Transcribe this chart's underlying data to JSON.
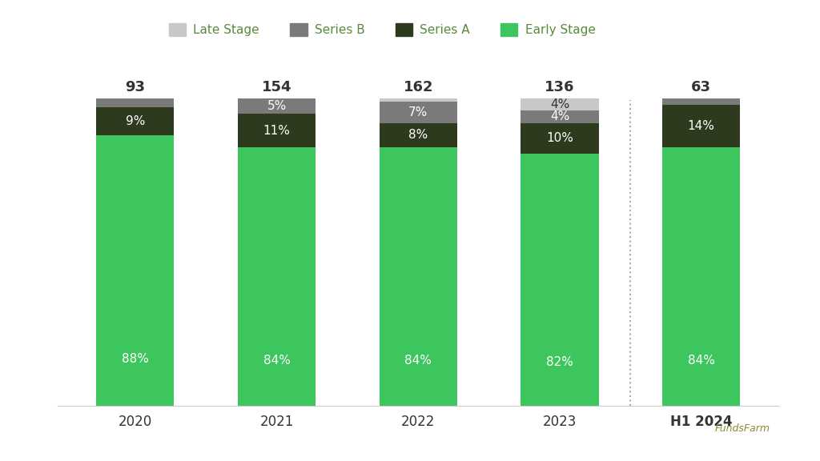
{
  "categories": [
    "2020",
    "2021",
    "2022",
    "2023",
    "H1 2024"
  ],
  "totals": [
    93,
    154,
    162,
    136,
    63
  ],
  "early_stage_pct": [
    88,
    84,
    84,
    82,
    84
  ],
  "series_a_pct": [
    9,
    11,
    8,
    10,
    14
  ],
  "series_b_pct": [
    3,
    5,
    7,
    4,
    2
  ],
  "late_stage_pct": [
    0,
    0,
    1,
    4,
    0
  ],
  "colors": {
    "early_stage": "#3DC55E",
    "series_a": "#2D3A1E",
    "series_b": "#7A7A7A",
    "late_stage": "#C8C8C8"
  },
  "background_color": "#FFFFFF",
  "text_color_dark": "#333333",
  "text_color_light": "#FFFFFF",
  "bar_width": 0.55,
  "dotted_line_x": 3.5,
  "ylim": [
    0,
    108
  ],
  "legend_text_color": "#5A8A3E"
}
